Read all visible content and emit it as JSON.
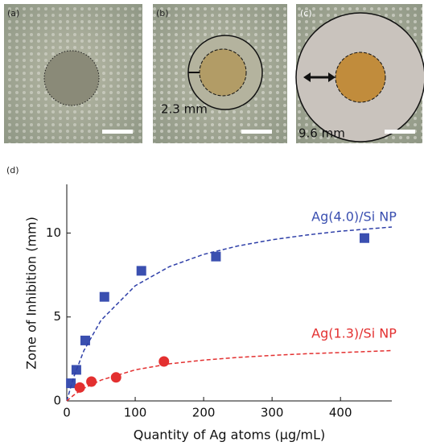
{
  "panels": [
    {
      "label": "(a)"
    },
    {
      "label": "(b)",
      "annotation": "2.3 mm"
    },
    {
      "label": "(c)",
      "annotation": "9.6 mm"
    }
  ],
  "chart_label": "(d)",
  "chart_data": {
    "type": "scatter",
    "x_label": "Quantity of Ag atoms (μg/mL)",
    "y_label": "Zone of Inhibition (mm)",
    "xlim": [
      0,
      475
    ],
    "xticks": [
      0,
      100,
      200,
      300,
      400
    ],
    "ylim": [
      0,
      12.9
    ],
    "yticks": [
      0,
      5,
      10
    ],
    "series": [
      {
        "name": "Ag(4.0)/Si NP",
        "color": "#3a4fb0",
        "marker": "square",
        "x": [
          6,
          14,
          27,
          55,
          109,
          218,
          435
        ],
        "values": [
          1.05,
          1.85,
          3.6,
          6.2,
          7.75,
          8.6,
          9.7
        ]
      },
      {
        "name": "Ag(1.3)/Si NP",
        "color": "#e33030",
        "marker": "circle",
        "x": [
          19,
          36,
          72,
          142
        ],
        "values": [
          0.8,
          1.15,
          1.4,
          2.35
        ]
      },
      {
        "color": "#2e3fa8",
        "style": "dashed",
        "x": [
          0,
          10,
          25,
          50,
          100,
          150,
          200,
          250,
          300,
          350,
          400,
          475
        ],
        "values": [
          0,
          1.41,
          3.0,
          4.8,
          6.86,
          8.0,
          8.73,
          9.23,
          9.6,
          9.88,
          10.11,
          10.36
        ]
      },
      {
        "color": "#e33030",
        "style": "dashed",
        "x": [
          0,
          10,
          25,
          50,
          100,
          150,
          200,
          250,
          300,
          350,
          400,
          475
        ],
        "values": [
          0,
          0.34,
          0.75,
          1.24,
          1.85,
          2.21,
          2.43,
          2.59,
          2.71,
          2.81,
          2.88,
          3.0
        ]
      }
    ]
  }
}
